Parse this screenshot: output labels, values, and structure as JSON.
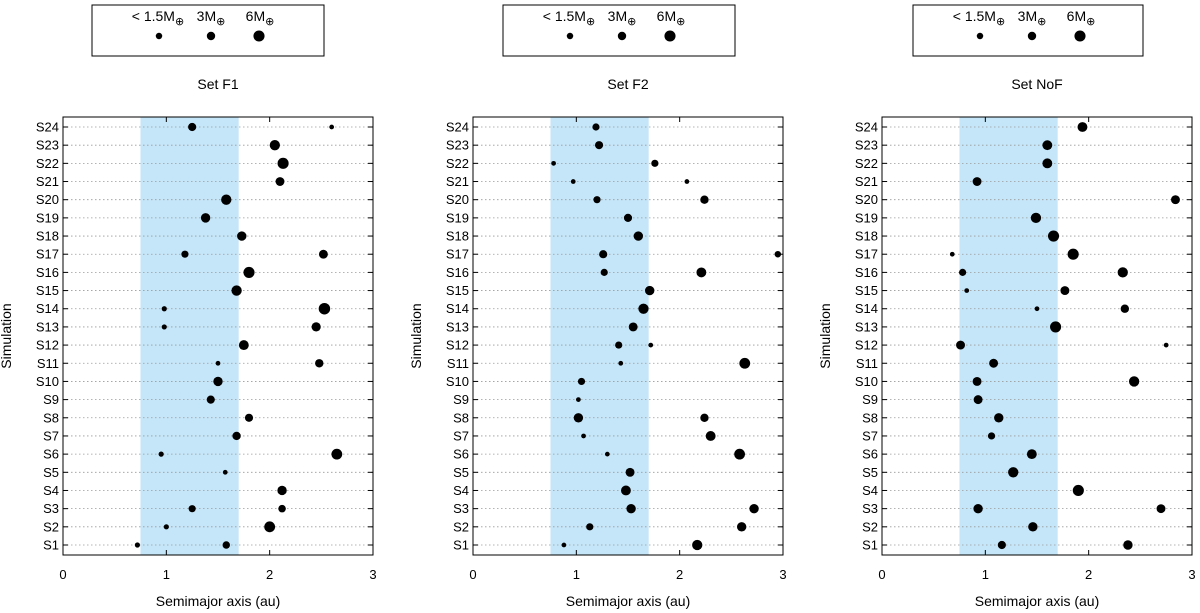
{
  "legend": {
    "items": [
      {
        "label": "< 1.5M",
        "symbol": "⊕",
        "mass": 1.5
      },
      {
        "label": "3M",
        "symbol": "⊕",
        "mass": 3
      },
      {
        "label": "6M",
        "symbol": "⊕",
        "mass": 6
      }
    ]
  },
  "shared_axes": {
    "xlabel": "Semimajor axis (au)",
    "ylabel": "Simulation",
    "xlim": [
      0,
      3
    ],
    "xticks": [
      0,
      1,
      2,
      3
    ],
    "categories": [
      "S1",
      "S2",
      "S3",
      "S4",
      "S5",
      "S6",
      "S7",
      "S8",
      "S9",
      "S10",
      "S11",
      "S12",
      "S13",
      "S14",
      "S15",
      "S16",
      "S17",
      "S18",
      "S19",
      "S20",
      "S21",
      "S22",
      "S23",
      "S24"
    ],
    "shaded_band": [
      0.75,
      1.7
    ],
    "shade_color": "#c5e6f8",
    "grid": "horizontal-dotted",
    "marker_color": "#000000"
  },
  "chart_data": [
    {
      "type": "scatter",
      "title": "Set F1",
      "points": [
        {
          "sim": "S1",
          "a": 0.72,
          "m": 0.8
        },
        {
          "sim": "S1",
          "a": 1.58,
          "m": 2.2
        },
        {
          "sim": "S2",
          "a": 1.0,
          "m": 0.8
        },
        {
          "sim": "S2",
          "a": 2.0,
          "m": 5.6
        },
        {
          "sim": "S3",
          "a": 1.25,
          "m": 2.0
        },
        {
          "sim": "S3",
          "a": 2.12,
          "m": 2.3
        },
        {
          "sim": "S4",
          "a": 2.12,
          "m": 4.0
        },
        {
          "sim": "S5",
          "a": 1.57,
          "m": 0.6
        },
        {
          "sim": "S6",
          "a": 0.95,
          "m": 0.8
        },
        {
          "sim": "S6",
          "a": 2.65,
          "m": 5.6
        },
        {
          "sim": "S7",
          "a": 1.68,
          "m": 3.0
        },
        {
          "sim": "S8",
          "a": 1.8,
          "m": 2.8
        },
        {
          "sim": "S9",
          "a": 1.43,
          "m": 2.8
        },
        {
          "sim": "S10",
          "a": 1.5,
          "m": 4.0
        },
        {
          "sim": "S11",
          "a": 1.5,
          "m": 0.6
        },
        {
          "sim": "S11",
          "a": 2.48,
          "m": 3.0
        },
        {
          "sim": "S12",
          "a": 1.75,
          "m": 4.5
        },
        {
          "sim": "S13",
          "a": 0.98,
          "m": 0.8
        },
        {
          "sim": "S13",
          "a": 2.45,
          "m": 3.8
        },
        {
          "sim": "S14",
          "a": 0.98,
          "m": 0.8
        },
        {
          "sim": "S14",
          "a": 2.53,
          "m": 6.5
        },
        {
          "sim": "S15",
          "a": 1.68,
          "m": 5.0
        },
        {
          "sim": "S16",
          "a": 1.8,
          "m": 6.0
        },
        {
          "sim": "S17",
          "a": 1.18,
          "m": 2.0
        },
        {
          "sim": "S17",
          "a": 2.52,
          "m": 3.5
        },
        {
          "sim": "S18",
          "a": 1.73,
          "m": 4.0
        },
        {
          "sim": "S19",
          "a": 1.38,
          "m": 4.0
        },
        {
          "sim": "S20",
          "a": 1.58,
          "m": 5.0
        },
        {
          "sim": "S21",
          "a": 2.1,
          "m": 3.5
        },
        {
          "sim": "S22",
          "a": 2.13,
          "m": 6.0
        },
        {
          "sim": "S23",
          "a": 2.05,
          "m": 5.0
        },
        {
          "sim": "S24",
          "a": 1.25,
          "m": 2.8
        },
        {
          "sim": "S24",
          "a": 2.6,
          "m": 0.6
        }
      ]
    },
    {
      "type": "scatter",
      "title": "Set F2",
      "points": [
        {
          "sim": "S1",
          "a": 0.88,
          "m": 0.6
        },
        {
          "sim": "S1",
          "a": 2.17,
          "m": 5.0
        },
        {
          "sim": "S2",
          "a": 1.13,
          "m": 2.0
        },
        {
          "sim": "S2",
          "a": 2.6,
          "m": 4.0
        },
        {
          "sim": "S3",
          "a": 1.53,
          "m": 4.0
        },
        {
          "sim": "S3",
          "a": 2.72,
          "m": 4.0
        },
        {
          "sim": "S4",
          "a": 1.48,
          "m": 4.5
        },
        {
          "sim": "S5",
          "a": 1.52,
          "m": 3.5
        },
        {
          "sim": "S6",
          "a": 1.3,
          "m": 0.6
        },
        {
          "sim": "S6",
          "a": 2.58,
          "m": 5.6
        },
        {
          "sim": "S7",
          "a": 1.07,
          "m": 0.6
        },
        {
          "sim": "S7",
          "a": 2.3,
          "m": 4.5
        },
        {
          "sim": "S8",
          "a": 1.02,
          "m": 4.0
        },
        {
          "sim": "S8",
          "a": 2.24,
          "m": 3.0
        },
        {
          "sim": "S9",
          "a": 1.02,
          "m": 0.6
        },
        {
          "sim": "S10",
          "a": 1.05,
          "m": 2.0
        },
        {
          "sim": "S11",
          "a": 1.43,
          "m": 0.6
        },
        {
          "sim": "S11",
          "a": 2.63,
          "m": 5.6
        },
        {
          "sim": "S12",
          "a": 1.41,
          "m": 2.0
        },
        {
          "sim": "S12",
          "a": 1.72,
          "m": 0.6
        },
        {
          "sim": "S13",
          "a": 1.55,
          "m": 3.5
        },
        {
          "sim": "S14",
          "a": 1.65,
          "m": 5.0
        },
        {
          "sim": "S15",
          "a": 1.71,
          "m": 4.0
        },
        {
          "sim": "S16",
          "a": 1.27,
          "m": 2.0
        },
        {
          "sim": "S16",
          "a": 2.21,
          "m": 4.5
        },
        {
          "sim": "S17",
          "a": 1.26,
          "m": 2.8
        },
        {
          "sim": "S17",
          "a": 2.95,
          "m": 1.5
        },
        {
          "sim": "S18",
          "a": 1.6,
          "m": 4.0
        },
        {
          "sim": "S19",
          "a": 1.5,
          "m": 2.8
        },
        {
          "sim": "S20",
          "a": 1.2,
          "m": 2.0
        },
        {
          "sim": "S20",
          "a": 2.24,
          "m": 3.0
        },
        {
          "sim": "S21",
          "a": 0.97,
          "m": 0.6
        },
        {
          "sim": "S21",
          "a": 2.07,
          "m": 0.6
        },
        {
          "sim": "S22",
          "a": 0.78,
          "m": 0.6
        },
        {
          "sim": "S22",
          "a": 1.76,
          "m": 2.0
        },
        {
          "sim": "S23",
          "a": 1.22,
          "m": 2.8
        },
        {
          "sim": "S24",
          "a": 1.19,
          "m": 2.0
        }
      ]
    },
    {
      "type": "scatter",
      "title": "Set NoF",
      "points": [
        {
          "sim": "S1",
          "a": 1.16,
          "m": 2.8
        },
        {
          "sim": "S1",
          "a": 2.38,
          "m": 4.0
        },
        {
          "sim": "S2",
          "a": 1.46,
          "m": 4.0
        },
        {
          "sim": "S3",
          "a": 0.93,
          "m": 4.0
        },
        {
          "sim": "S3",
          "a": 2.7,
          "m": 3.5
        },
        {
          "sim": "S4",
          "a": 1.9,
          "m": 6.0
        },
        {
          "sim": "S5",
          "a": 1.27,
          "m": 5.0
        },
        {
          "sim": "S6",
          "a": 1.45,
          "m": 4.5
        },
        {
          "sim": "S7",
          "a": 1.06,
          "m": 2.0
        },
        {
          "sim": "S8",
          "a": 1.13,
          "m": 4.0
        },
        {
          "sim": "S9",
          "a": 0.93,
          "m": 3.5
        },
        {
          "sim": "S10",
          "a": 0.92,
          "m": 3.5
        },
        {
          "sim": "S10",
          "a": 2.44,
          "m": 5.0
        },
        {
          "sim": "S11",
          "a": 1.08,
          "m": 3.5
        },
        {
          "sim": "S12",
          "a": 0.76,
          "m": 3.5
        },
        {
          "sim": "S12",
          "a": 2.75,
          "m": 0.6
        },
        {
          "sim": "S13",
          "a": 1.68,
          "m": 6.0
        },
        {
          "sim": "S14",
          "a": 1.5,
          "m": 0.6
        },
        {
          "sim": "S14",
          "a": 2.35,
          "m": 3.0
        },
        {
          "sim": "S15",
          "a": 0.82,
          "m": 0.6
        },
        {
          "sim": "S15",
          "a": 1.77,
          "m": 3.5
        },
        {
          "sim": "S16",
          "a": 0.78,
          "m": 2.0
        },
        {
          "sim": "S16",
          "a": 2.33,
          "m": 5.0
        },
        {
          "sim": "S17",
          "a": 0.68,
          "m": 0.6
        },
        {
          "sim": "S17",
          "a": 1.85,
          "m": 6.0
        },
        {
          "sim": "S18",
          "a": 1.66,
          "m": 6.0
        },
        {
          "sim": "S19",
          "a": 1.49,
          "m": 5.0
        },
        {
          "sim": "S20",
          "a": 2.84,
          "m": 3.5
        },
        {
          "sim": "S21",
          "a": 0.92,
          "m": 3.5
        },
        {
          "sim": "S22",
          "a": 1.6,
          "m": 4.5
        },
        {
          "sim": "S23",
          "a": 1.6,
          "m": 4.5
        },
        {
          "sim": "S24",
          "a": 1.94,
          "m": 4.5
        }
      ]
    }
  ]
}
